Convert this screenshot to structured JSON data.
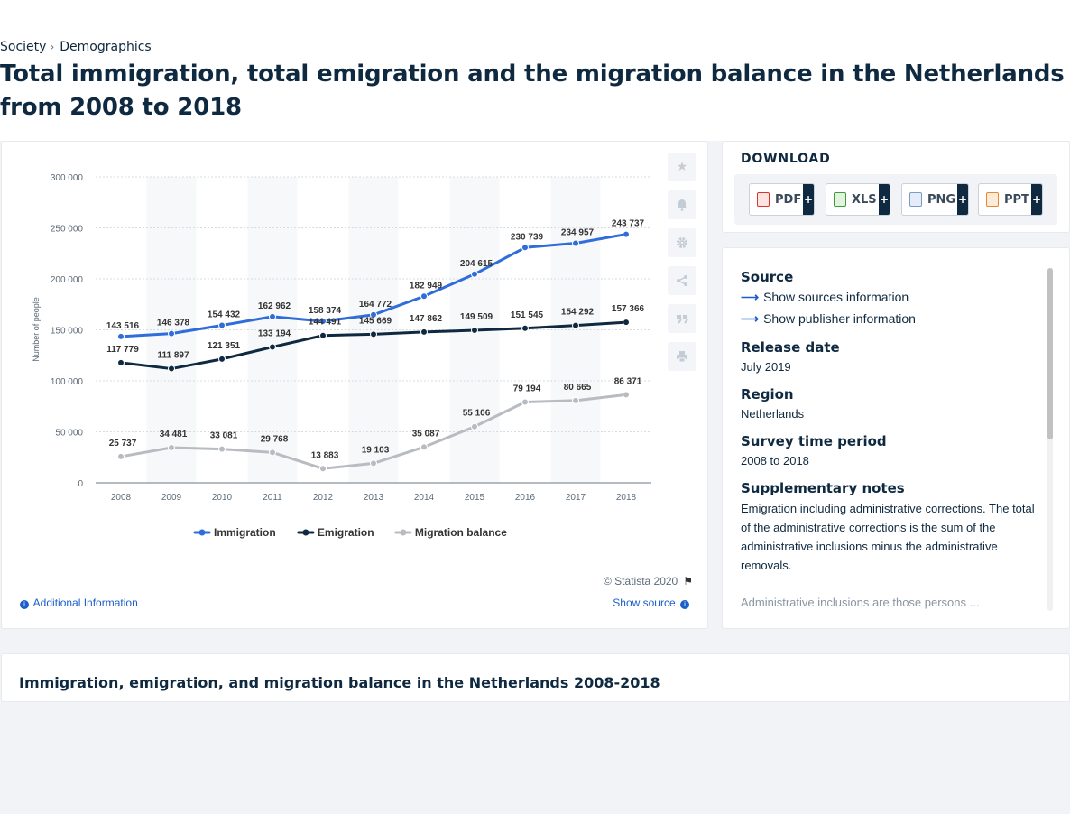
{
  "breadcrumb": [
    {
      "label": "Society"
    },
    {
      "label": "Demographics"
    }
  ],
  "breadcrumb_sep": "›",
  "page_title": "Total immigration, total emigration and the migration balance in the Netherlands from 2008 to 2018",
  "chart_data": {
    "type": "line",
    "categories": [
      "2008",
      "2009",
      "2010",
      "2011",
      "2012",
      "2013",
      "2014",
      "2015",
      "2016",
      "2017",
      "2018"
    ],
    "series": [
      {
        "name": "Immigration",
        "color": "#2f6ddb",
        "values": [
          143516,
          146378,
          154432,
          162962,
          158374,
          164772,
          182949,
          204615,
          230739,
          234957,
          243737
        ],
        "labels": [
          "143 516",
          "146 378",
          "154 432",
          "162 962",
          "158 374",
          "164 772",
          "182 949",
          "204 615",
          "230 739",
          "234 957",
          "243 737"
        ]
      },
      {
        "name": "Emigration",
        "color": "#0f2a40",
        "values": [
          117779,
          111897,
          121351,
          133194,
          144491,
          145669,
          147862,
          149509,
          151545,
          154292,
          157366
        ],
        "labels": [
          "117 779",
          "111 897",
          "121 351",
          "133 194",
          "144 491",
          "145 669",
          "147 862",
          "149 509",
          "151 545",
          "154 292",
          "157 366"
        ]
      },
      {
        "name": "Migration balance",
        "color": "#b8bcc1",
        "values": [
          25737,
          34481,
          33081,
          29768,
          13883,
          19103,
          35087,
          55106,
          79194,
          80665,
          86371
        ],
        "labels": [
          "25 737",
          "34 481",
          "33 081",
          "29 768",
          "13 883",
          "19 103",
          "35 087",
          "55 106",
          "79 194",
          "80 665",
          "86 371"
        ]
      }
    ],
    "ylabel": "Number of people",
    "ylim": [
      0,
      300000
    ],
    "yticks": [
      0,
      50000,
      100000,
      150000,
      200000,
      250000,
      300000
    ],
    "ytick_labels": [
      "0",
      "50 000",
      "100 000",
      "150 000",
      "200 000",
      "250 000",
      "300 000"
    ],
    "grid": true,
    "legend_position": "bottom-center"
  },
  "chart_footer": {
    "copyright": "© Statista 2020",
    "additional_info": "Additional Information",
    "show_source": "Show source"
  },
  "tools": [
    "star-icon",
    "bell-icon",
    "gear-icon",
    "share-icon",
    "quote-icon",
    "print-icon"
  ],
  "download": {
    "title": "DOWNLOAD",
    "buttons": [
      {
        "label": "PDF",
        "color": "#d9352b"
      },
      {
        "label": "XLS",
        "color": "#3e9b3c"
      },
      {
        "label": "PNG",
        "color": "#7a9bc9"
      },
      {
        "label": "PPT",
        "color": "#e58a2b"
      }
    ],
    "plus": "+"
  },
  "details": {
    "source_h": "Source",
    "show_sources": "Show sources information",
    "show_publisher": "Show publisher information",
    "release_h": "Release date",
    "release_v": "July 2019",
    "region_h": "Region",
    "region_v": "Netherlands",
    "survey_h": "Survey time period",
    "survey_v": "2008 to 2018",
    "notes_h": "Supplementary notes",
    "notes_p1": "Emigration including administrative corrections. The total of the administrative corrections is the sum of the administrative inclusions minus the administrative removals.",
    "notes_p2": "Administrative inclusions are those persons ..."
  },
  "bottom_title": "Immigration, emigration, and migration balance in the Netherlands 2008-2018"
}
